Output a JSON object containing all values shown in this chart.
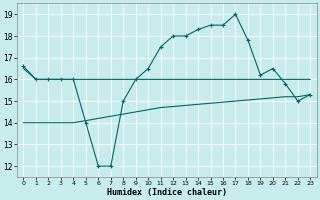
{
  "xlabel": "Humidex (Indice chaleur)",
  "bg_color": "#c8ecec",
  "grid_color": "#b0d8d8",
  "line_color": "#006666",
  "xlim": [
    -0.5,
    23.5
  ],
  "ylim": [
    11.5,
    19.5
  ],
  "yticks": [
    12,
    13,
    14,
    15,
    16,
    17,
    18,
    19
  ],
  "xticks": [
    0,
    1,
    2,
    3,
    4,
    5,
    6,
    7,
    8,
    9,
    10,
    11,
    12,
    13,
    14,
    15,
    16,
    17,
    18,
    19,
    20,
    21,
    22,
    23
  ],
  "line1_x": [
    0,
    1,
    2,
    3,
    4,
    5,
    6,
    7,
    8,
    9,
    10,
    11,
    12,
    13,
    14,
    15,
    16,
    17,
    18,
    19,
    20,
    21,
    22,
    23
  ],
  "line1_y": [
    16.6,
    16.0,
    16.0,
    16.0,
    16.0,
    14.0,
    12.0,
    12.0,
    15.0,
    16.0,
    16.5,
    17.5,
    18.0,
    18.0,
    18.3,
    18.5,
    18.5,
    19.0,
    17.8,
    16.2,
    16.5,
    15.8,
    15.0,
    15.3
  ],
  "line2_x": [
    0,
    1,
    2,
    3,
    4,
    5,
    6,
    7,
    8,
    9,
    10,
    11,
    12,
    13,
    14,
    15,
    16,
    17,
    18,
    19,
    20,
    21,
    22,
    23
  ],
  "line2_y": [
    16.5,
    16.0,
    16.0,
    16.0,
    16.0,
    16.0,
    16.0,
    16.0,
    16.0,
    16.0,
    16.0,
    16.0,
    16.0,
    16.0,
    16.0,
    16.0,
    16.0,
    16.0,
    16.0,
    16.0,
    16.0,
    16.0,
    16.0,
    16.0
  ],
  "line3_x": [
    0,
    1,
    2,
    3,
    4,
    5,
    6,
    7,
    8,
    9,
    10,
    11,
    12,
    13,
    14,
    15,
    16,
    17,
    18,
    19,
    20,
    21,
    22,
    23
  ],
  "line3_y": [
    14.0,
    14.0,
    14.0,
    14.0,
    14.0,
    14.1,
    14.2,
    14.3,
    14.4,
    14.5,
    14.6,
    14.7,
    14.75,
    14.8,
    14.85,
    14.9,
    14.95,
    15.0,
    15.05,
    15.1,
    15.15,
    15.2,
    15.2,
    15.3
  ]
}
